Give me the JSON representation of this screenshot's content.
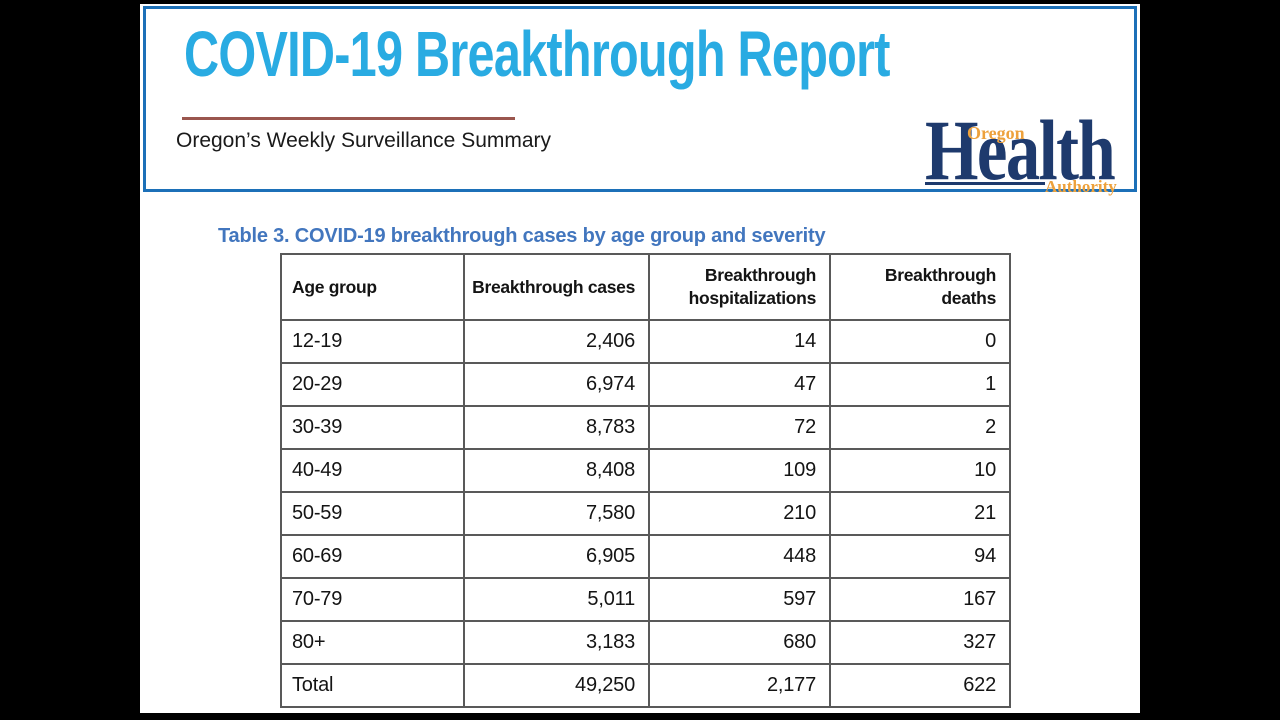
{
  "page": {
    "background_color": "#000000",
    "slide_color": "#ffffff"
  },
  "header": {
    "title": "COVID-19 Breakthrough Report",
    "subtitle": "Oregon’s Weekly Surveillance Summary",
    "title_color": "#29abe2",
    "box_border_color": "#1c70b8",
    "rule_color": "#9a564e"
  },
  "logo": {
    "word_top": "Oregon",
    "word_main": "Health",
    "word_bottom": "Authority",
    "navy_color": "#1e3a6d",
    "orange_color": "#eda13c"
  },
  "table": {
    "caption": "Table 3. COVID-19 breakthrough cases by age group and severity",
    "caption_color": "#4276be",
    "border_color": "#595959",
    "columns": [
      "Age group",
      "Breakthrough cases",
      "Breakthrough hospitalizations",
      "Breakthrough deaths"
    ],
    "rows": [
      [
        "12-19",
        "2,406",
        "14",
        "0"
      ],
      [
        "20-29",
        "6,974",
        "47",
        "1"
      ],
      [
        "30-39",
        "8,783",
        "72",
        "2"
      ],
      [
        "40-49",
        "8,408",
        "109",
        "10"
      ],
      [
        "50-59",
        "7,580",
        "210",
        "21"
      ],
      [
        "60-69",
        "6,905",
        "448",
        "94"
      ],
      [
        "70-79",
        "5,011",
        "597",
        "167"
      ],
      [
        "80+",
        "3,183",
        "680",
        "327"
      ],
      [
        "Total",
        "49,250",
        "2,177",
        "622"
      ]
    ]
  }
}
